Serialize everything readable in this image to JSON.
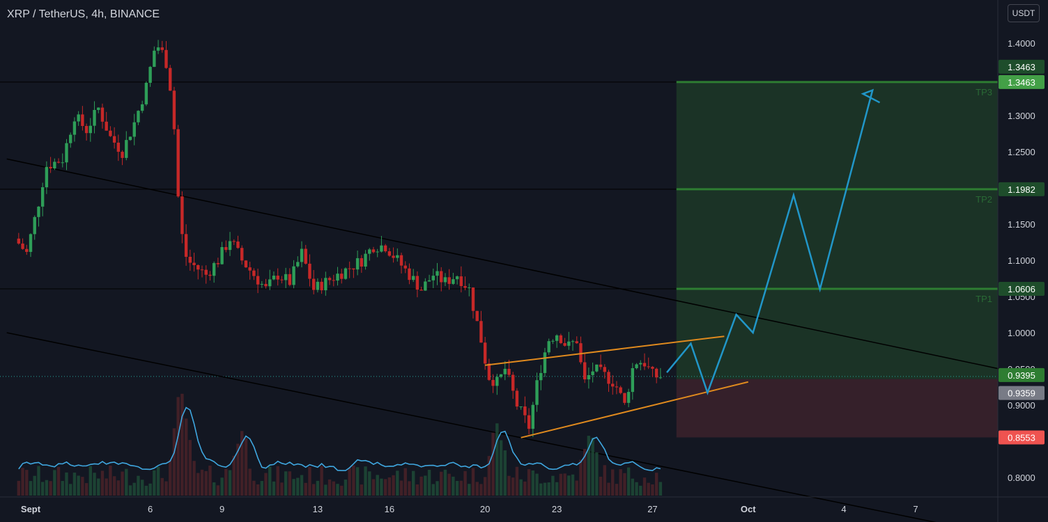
{
  "header": {
    "title": "XRP / TetherUS, 4h, BINANCE",
    "currency_button": "USDT"
  },
  "colors": {
    "background": "#131722",
    "up": "#26a69a",
    "down": "#ef5350",
    "up_candle": "#2e9e58",
    "down_candle": "#c62828",
    "target_zone": "#1b3326",
    "stop_zone": "#35202a",
    "target_line": "#2e7d32",
    "wedge_line": "#e08a1e",
    "projection": "#2196c8",
    "volume_ma": "#3fa7e0",
    "current_price": "#2e7d32",
    "stop_label": "#ef5350"
  },
  "chart_data": {
    "type": "candlestick",
    "symbol": "XRP / TetherUS",
    "interval": "4h",
    "exchange": "BINANCE",
    "currency": "USDT",
    "y_axis": {
      "ticks": [
        "1.4000",
        "1.3000",
        "1.2500",
        "1.1500",
        "1.1000",
        "1.0500",
        "1.0000",
        "0.9500",
        "0.9000",
        "0.8000"
      ],
      "range": [
        0.78,
        1.45
      ]
    },
    "x_axis": {
      "ticks": [
        {
          "label": "Sept",
          "day": 1
        },
        {
          "label": "6",
          "day": 6
        },
        {
          "label": "9",
          "day": 9
        },
        {
          "label": "13",
          "day": 13
        },
        {
          "label": "16",
          "day": 16
        },
        {
          "label": "20",
          "day": 20
        },
        {
          "label": "23",
          "day": 23
        },
        {
          "label": "27",
          "day": 27
        },
        {
          "label": "Oct",
          "day": 31
        },
        {
          "label": "4",
          "day": 35
        },
        {
          "label": "7",
          "day": 38
        }
      ],
      "range_days": [
        0.5,
        41.5
      ]
    },
    "price_path": [
      [
        0.5,
        1.13
      ],
      [
        1.0,
        1.11
      ],
      [
        1.5,
        1.18
      ],
      [
        1.8,
        1.23
      ],
      [
        2.5,
        1.24
      ],
      [
        3.0,
        1.3
      ],
      [
        3.5,
        1.28
      ],
      [
        4.0,
        1.31
      ],
      [
        4.5,
        1.27
      ],
      [
        5.0,
        1.25
      ],
      [
        5.5,
        1.29
      ],
      [
        6.0,
        1.34
      ],
      [
        6.4,
        1.4
      ],
      [
        6.8,
        1.38
      ],
      [
        7.1,
        1.32
      ],
      [
        7.4,
        1.15
      ],
      [
        7.7,
        1.1
      ],
      [
        8.1,
        1.09
      ],
      [
        8.5,
        1.08
      ],
      [
        9.0,
        1.1
      ],
      [
        9.5,
        1.13
      ],
      [
        10.0,
        1.1
      ],
      [
        10.5,
        1.08
      ],
      [
        11.0,
        1.06
      ],
      [
        11.5,
        1.08
      ],
      [
        12.0,
        1.07
      ],
      [
        12.5,
        1.11
      ],
      [
        13.0,
        1.06
      ],
      [
        13.5,
        1.07
      ],
      [
        14.0,
        1.08
      ],
      [
        14.5,
        1.09
      ],
      [
        15.0,
        1.1
      ],
      [
        15.5,
        1.12
      ],
      [
        16.0,
        1.12
      ],
      [
        16.5,
        1.1
      ],
      [
        17.0,
        1.08
      ],
      [
        17.5,
        1.06
      ],
      [
        18.0,
        1.08
      ],
      [
        18.5,
        1.07
      ],
      [
        19.0,
        1.08
      ],
      [
        19.5,
        1.06
      ],
      [
        20.0,
        0.99
      ],
      [
        20.3,
        0.94
      ],
      [
        20.7,
        0.93
      ],
      [
        21.0,
        0.95
      ],
      [
        21.5,
        0.9
      ],
      [
        22.0,
        0.87
      ],
      [
        22.4,
        0.94
      ],
      [
        22.8,
        0.99
      ],
      [
        23.2,
        1.0
      ],
      [
        23.6,
        0.98
      ],
      [
        24.0,
        0.99
      ],
      [
        24.3,
        0.93
      ],
      [
        24.7,
        0.95
      ],
      [
        25.2,
        0.94
      ],
      [
        25.6,
        0.93
      ],
      [
        26.0,
        0.9
      ],
      [
        26.4,
        0.96
      ],
      [
        26.8,
        0.96
      ],
      [
        27.2,
        0.94
      ],
      [
        27.4,
        0.9395
      ]
    ],
    "volume_peaks": [
      [
        7.3,
        1.0
      ],
      [
        9.8,
        0.55
      ],
      [
        20.5,
        0.6
      ],
      [
        24.4,
        0.45
      ]
    ],
    "trendlines": {
      "descending_upper": [
        [
          0.0,
          1.24
        ],
        [
          41.5,
          0.95
        ]
      ],
      "descending_lower": [
        [
          0.0,
          1.0
        ],
        [
          41.5,
          0.72
        ]
      ],
      "wedge_upper": [
        [
          20.0,
          0.955
        ],
        [
          30.0,
          0.995
        ]
      ],
      "wedge_lower": [
        [
          21.5,
          0.855
        ],
        [
          31.0,
          0.932
        ]
      ]
    },
    "horizontal_levels": [
      1.3463,
      1.1982,
      1.0606
    ],
    "position": {
      "entry": 0.9359,
      "stop": 0.8553,
      "start_day": 28.0,
      "end_day": 41.5
    },
    "targets": [
      {
        "label": "TP1",
        "value": 1.0606
      },
      {
        "label": "TP2",
        "value": 1.1982
      },
      {
        "label": "TP3",
        "value": 1.3463
      }
    ],
    "projection_path": [
      [
        27.6,
        0.945
      ],
      [
        28.6,
        0.985
      ],
      [
        29.3,
        0.917
      ],
      [
        30.5,
        1.025
      ],
      [
        31.2,
        1.0
      ],
      [
        32.9,
        1.19
      ],
      [
        34.0,
        1.06
      ],
      [
        36.2,
        1.335
      ],
      [
        35.8,
        1.33
      ],
      [
        36.5,
        1.318
      ]
    ],
    "price_labels": {
      "current": "0.9395",
      "entry": "0.9359",
      "stop": "0.8553",
      "tp1": "1.0606",
      "tp2": "1.1982",
      "tp3": "1.3463",
      "tp3_dup": "1.3463"
    }
  }
}
